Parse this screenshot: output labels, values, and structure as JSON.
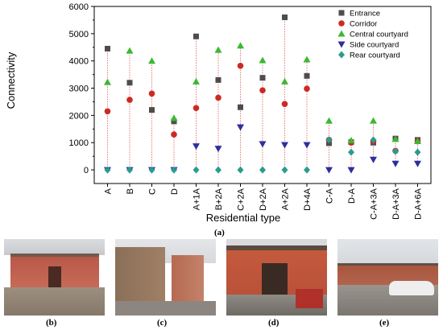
{
  "chart_data": {
    "type": "scatter",
    "xlabel": "Residential type",
    "ylabel": "Connectivity",
    "ylim": [
      -500,
      6000
    ],
    "yticks": [
      0,
      1000,
      2000,
      3000,
      4000,
      5000,
      6000
    ],
    "categories": [
      "A",
      "B",
      "C",
      "D",
      "A+1A",
      "B+2A",
      "C+2A",
      "D+2A",
      "A+2A",
      "D+4A",
      "C-A",
      "D-A",
      "C-A+3A",
      "D-A+3A",
      "D-A+6A"
    ],
    "legend_position": "top-right",
    "series": [
      {
        "name": "Entrance",
        "marker": "square",
        "color": "#4d4d4d",
        "values": [
          4450,
          3200,
          2200,
          1780,
          4900,
          3300,
          2300,
          3380,
          5600,
          3450,
          980,
          1020,
          1000,
          1150,
          1100
        ]
      },
      {
        "name": "Corridor",
        "marker": "circle",
        "color": "#cc2a22",
        "values": [
          2150,
          2570,
          2800,
          1300,
          2270,
          2650,
          3820,
          2920,
          2420,
          2980,
          1100,
          1000,
          1050,
          700,
          1050
        ]
      },
      {
        "name": "Central courtyard",
        "marker": "triangle-up",
        "color": "#3cb832",
        "values": [
          3220,
          4370,
          4000,
          1900,
          3240,
          4400,
          4560,
          4020,
          3240,
          4050,
          1800,
          1080,
          1800,
          1130,
          1050
        ]
      },
      {
        "name": "Side courtyard",
        "marker": "triangle-down",
        "color": "#2d2f9e",
        "values": [
          0,
          0,
          0,
          0,
          870,
          780,
          1570,
          950,
          920,
          920,
          0,
          0,
          380,
          230,
          230
        ]
      },
      {
        "name": "Rear courtyard",
        "marker": "diamond",
        "color": "#2a9c8c",
        "values": [
          0,
          0,
          0,
          0,
          0,
          0,
          0,
          0,
          0,
          0,
          1100,
          650,
          1100,
          680,
          650
        ]
      }
    ],
    "connector_color": "#e8787a"
  },
  "panels": [
    {
      "label": "(a)"
    },
    {
      "label": "(b)"
    },
    {
      "label": "(c)"
    },
    {
      "label": "(d)"
    },
    {
      "label": "(e)"
    }
  ]
}
